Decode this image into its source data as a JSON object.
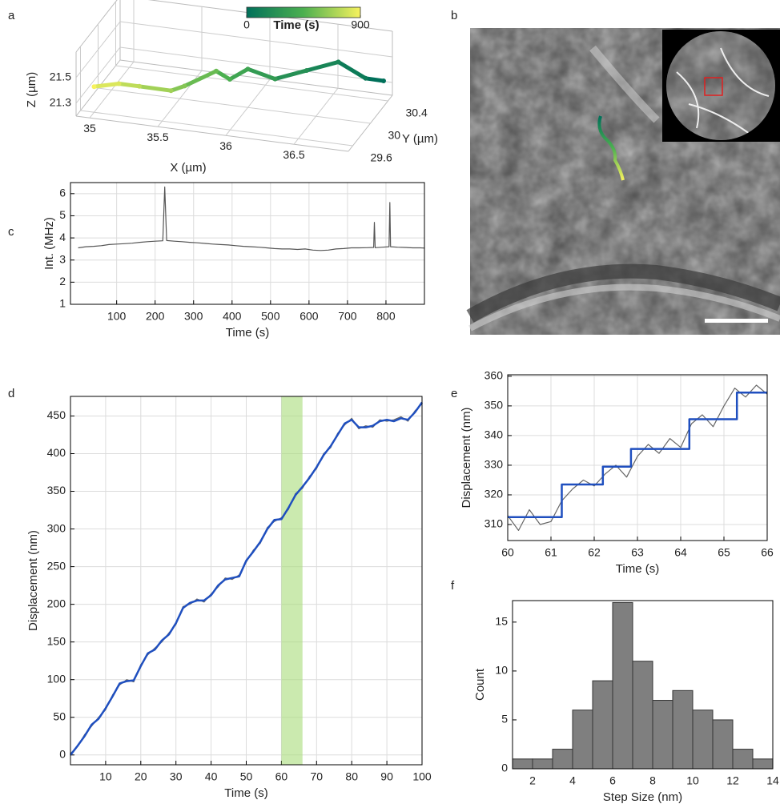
{
  "image_panel": {
    "panel": "b"
  },
  "chart_data": [
    {
      "type": "line3d",
      "panel": "a",
      "t": [
        0,
        75,
        150,
        225,
        300,
        375,
        450,
        525,
        600,
        675,
        750,
        825,
        900
      ],
      "x": [
        36.9,
        36.8,
        36.6,
        36.4,
        36.2,
        36.0,
        35.9,
        35.8,
        35.6,
        35.5,
        35.3,
        35.15,
        35.0
      ],
      "y": [
        30.3,
        30.2,
        30.2,
        30.1,
        30.0,
        30.0,
        29.9,
        29.9,
        29.8,
        29.8,
        29.7,
        29.7,
        29.6
      ],
      "z": [
        21.4,
        21.45,
        21.55,
        21.5,
        21.45,
        21.5,
        21.45,
        21.5,
        21.4,
        21.35,
        21.4,
        21.4,
        21.4
      ],
      "xlim": [
        34.9,
        36.9
      ],
      "ylim": [
        29.5,
        30.5
      ],
      "zlim": [
        21.2,
        21.7
      ],
      "xticks": [
        35,
        35.5,
        36,
        36.5
      ],
      "yticks": [
        29.6,
        30,
        30.4
      ],
      "zticks": [
        21.3,
        21.5
      ],
      "xlabel": "X (µm)",
      "ylabel": "Y (µm)",
      "zlabel": "Z (µm)",
      "grid": true,
      "colorbar": {
        "label": "Time (s)",
        "clim": [
          0,
          900
        ],
        "ticks": [
          0,
          900
        ],
        "colors": [
          "#00705a",
          "#4cb050",
          "#f7f25e"
        ]
      }
    },
    {
      "type": "line",
      "panel": "c",
      "x": [
        0,
        20,
        40,
        60,
        80,
        100,
        120,
        140,
        160,
        180,
        200,
        220,
        225,
        230,
        250,
        270,
        290,
        310,
        330,
        350,
        370,
        390,
        410,
        430,
        450,
        470,
        490,
        510,
        530,
        550,
        570,
        590,
        610,
        630,
        650,
        670,
        690,
        710,
        730,
        750,
        768,
        770,
        772,
        790,
        808,
        810,
        812,
        830,
        850,
        870,
        890,
        900
      ],
      "series": [
        {
          "color": "#555555",
          "values": [
            3.55,
            3.6,
            3.62,
            3.65,
            3.7,
            3.72,
            3.74,
            3.76,
            3.8,
            3.83,
            3.85,
            3.87,
            6.3,
            3.88,
            3.85,
            3.83,
            3.8,
            3.78,
            3.75,
            3.72,
            3.7,
            3.68,
            3.65,
            3.62,
            3.6,
            3.58,
            3.55,
            3.52,
            3.5,
            3.5,
            3.48,
            3.5,
            3.45,
            3.43,
            3.45,
            3.5,
            3.52,
            3.55,
            3.55,
            3.56,
            3.57,
            4.7,
            3.56,
            3.58,
            3.6,
            5.6,
            3.6,
            3.58,
            3.57,
            3.55,
            3.55,
            3.54
          ]
        }
      ],
      "xlim": [
        -20,
        900
      ],
      "ylim": [
        1,
        6.5
      ],
      "xticks": [
        100,
        200,
        300,
        400,
        500,
        600,
        700,
        800
      ],
      "yticks": [
        1,
        2,
        3,
        4,
        5,
        6
      ],
      "xlabel": "Time (s)",
      "ylabel": "Int. (MHz)",
      "grid": true
    },
    {
      "type": "line",
      "panel": "d",
      "x": [
        0,
        2,
        4,
        6,
        8,
        10,
        12,
        14,
        16,
        18,
        20,
        22,
        24,
        26,
        28,
        30,
        32,
        34,
        36,
        38,
        40,
        42,
        44,
        46,
        48,
        50,
        52,
        54,
        56,
        58,
        60,
        62,
        64,
        66,
        68,
        70,
        72,
        74,
        76,
        78,
        80,
        82,
        84,
        86,
        88,
        90,
        92,
        94,
        96,
        98,
        100
      ],
      "series": [
        {
          "color": "#666666",
          "width": 1.2,
          "values": [
            2,
            11,
            27,
            38,
            50,
            60,
            80,
            93,
            100,
            97,
            120,
            133,
            142,
            150,
            162,
            173,
            197,
            200,
            207,
            203,
            214,
            223,
            235,
            233,
            239,
            256,
            272,
            281,
            302,
            310,
            315,
            326,
            347,
            354,
            370,
            380,
            400,
            408,
            427,
            438,
            447,
            433,
            437,
            435,
            445,
            443,
            445,
            449,
            443,
            457,
            466
          ]
        },
        {
          "color": "#1f4fbf",
          "width": 2.5,
          "values": [
            0,
            12,
            25,
            40,
            48,
            62,
            78,
            95,
            98,
            99,
            118,
            135,
            140,
            152,
            160,
            175,
            195,
            202,
            205,
            205,
            212,
            225,
            233,
            235,
            237,
            258,
            270,
            283,
            300,
            312,
            313,
            328,
            345,
            356,
            368,
            382,
            398,
            410,
            425,
            440,
            445,
            435,
            435,
            437,
            443,
            445,
            443,
            447,
            445,
            455,
            468
          ]
        }
      ],
      "span": [
        60,
        66
      ],
      "span_color": "#a8dc7a",
      "xlim": [
        0,
        100
      ],
      "ylim": [
        -13,
        476
      ],
      "xticks": [
        10,
        20,
        30,
        40,
        50,
        60,
        70,
        80,
        90,
        100
      ],
      "yticks": [
        0,
        50,
        100,
        150,
        200,
        250,
        300,
        350,
        400,
        450
      ],
      "xlabel": "Time (s)",
      "ylabel": "Displacement (nm)",
      "grid": true
    },
    {
      "type": "line",
      "panel": "e",
      "series": [
        {
          "color": "#666666",
          "width": 1.2,
          "x": [
            60,
            60.25,
            60.5,
            60.75,
            61,
            61.25,
            61.5,
            61.75,
            62,
            62.25,
            62.5,
            62.75,
            63,
            63.25,
            63.5,
            63.75,
            64,
            64.25,
            64.5,
            64.75,
            65,
            65.25,
            65.5,
            65.75,
            66
          ],
          "values": [
            313,
            308,
            315,
            310,
            311,
            318,
            322,
            325,
            323,
            327,
            330,
            326,
            333,
            337,
            334,
            339,
            336,
            344,
            347,
            343,
            350,
            356,
            353,
            357,
            354
          ]
        },
        {
          "color": "#1f4fbf",
          "width": 2.5,
          "x": [
            60,
            61.25,
            61.25,
            62.2,
            62.2,
            62.85,
            62.85,
            64.2,
            64.2,
            65.3,
            65.3,
            66
          ],
          "values": [
            312.5,
            312.5,
            323.5,
            323.5,
            329.5,
            329.5,
            335.5,
            335.5,
            345.5,
            345.5,
            354.5,
            354.5
          ]
        }
      ],
      "xlim": [
        60,
        66
      ],
      "ylim": [
        304.6,
        360.5
      ],
      "xticks": [
        60,
        61,
        62,
        63,
        64,
        65,
        66
      ],
      "yticks": [
        310,
        320,
        330,
        340,
        350,
        360
      ],
      "xlabel": "Time (s)",
      "ylabel": "Displacement (nm)",
      "grid": true
    },
    {
      "type": "histogram",
      "panel": "f",
      "bins": [
        1,
        2,
        3,
        4,
        5,
        6,
        7,
        8,
        9,
        10,
        11,
        12,
        13,
        14
      ],
      "counts": [
        1,
        1,
        2,
        6,
        9,
        17,
        11,
        7,
        8,
        6,
        5,
        2,
        1
      ],
      "color": "#7f7f7f",
      "xlim": [
        1,
        14
      ],
      "ylim": [
        0,
        17.2
      ],
      "xticks": [
        2,
        4,
        6,
        8,
        10,
        12,
        14
      ],
      "yticks": [
        0,
        5,
        10,
        15
      ],
      "xlabel": "Step Size (nm)",
      "ylabel": "Count",
      "grid": false
    }
  ]
}
